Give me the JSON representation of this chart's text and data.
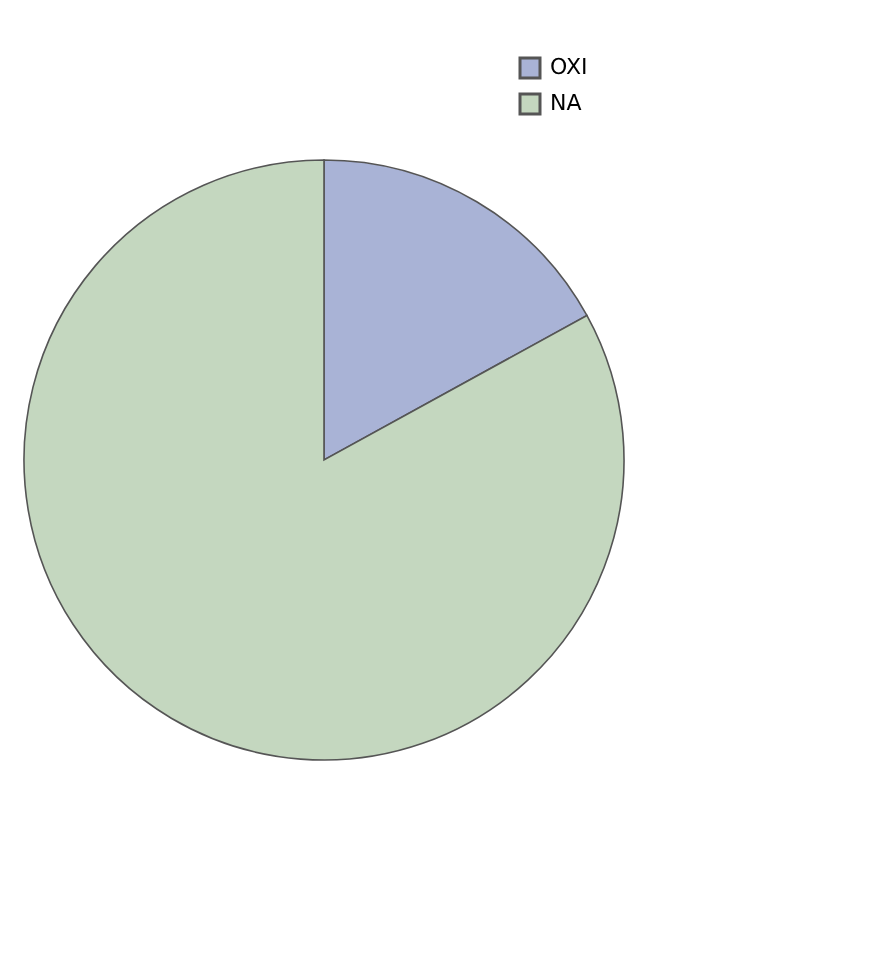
{
  "chart_data": {
    "type": "pie",
    "categories": [
      "OXI",
      "NA"
    ],
    "values": [
      17,
      83
    ],
    "colors": [
      "#a9b3d6",
      "#c4d7bf"
    ],
    "legend": "top right"
  }
}
